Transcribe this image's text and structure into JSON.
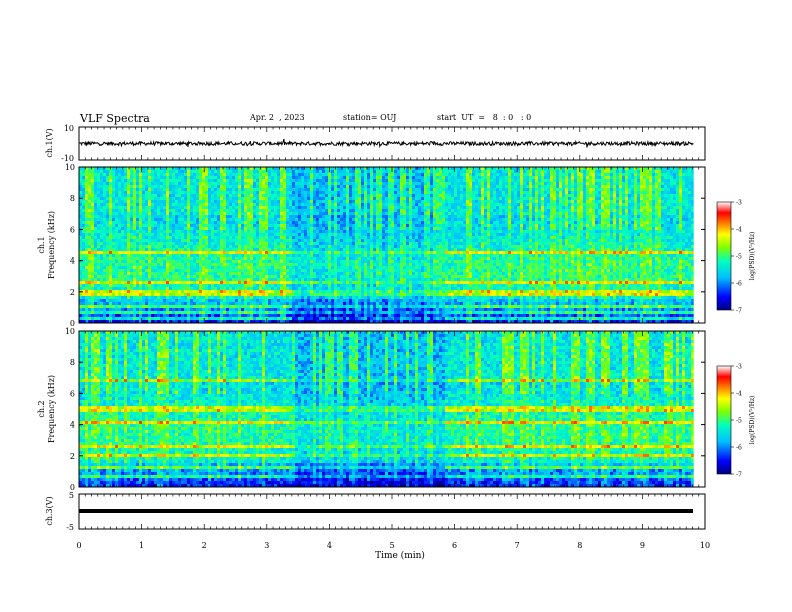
{
  "header": {
    "title": "VLF Spectra",
    "date": "Apr. 2  , 2023",
    "station": "station= OUJ",
    "start": "start  UT  =   8  : 0   : 0"
  },
  "chart_data": [
    {
      "type": "line",
      "name": "ch1-waveform",
      "ylabel": "ch.1(V)",
      "ylim": [
        -10,
        10
      ],
      "ytick_labels": [
        "10",
        "-10"
      ],
      "xlim": [
        0,
        9.82
      ],
      "baseline": 0,
      "description_level_V": 0
    },
    {
      "type": "heatmap",
      "name": "ch1-spectrogram",
      "ylabel": "ch.1\nFrequency  (kHz)",
      "ylim": [
        0,
        10
      ],
      "yticks": [
        0,
        2,
        4,
        6,
        8,
        10
      ],
      "ytick_labels": [
        "0",
        "2",
        "4",
        "6",
        "8",
        "10"
      ],
      "xlim": [
        0,
        9.82
      ],
      "colorbar": {
        "label": "log(PSD)(V²/Hz)",
        "range": [
          -7,
          -3
        ],
        "tick_labels": [
          "-3",
          "-4",
          "-5",
          "-6",
          "-7"
        ],
        "colors": [
          "#000080",
          "#0000ff",
          "#00c0ff",
          "#00ffc0",
          "#80ff00",
          "#ffff00",
          "#ff8000",
          "#ff0000",
          "#ffffff"
        ]
      },
      "features": {
        "quiet_interval_min": [
          3.4,
          5.8
        ],
        "persistent_lines_kHz": [
          0.3,
          0.6,
          1.0,
          1.8,
          2.0,
          2.6,
          4.5
        ]
      }
    },
    {
      "type": "heatmap",
      "name": "ch2-spectrogram",
      "ylabel": "ch.2\nFrequency  (kHz)",
      "ylim": [
        0,
        10
      ],
      "yticks": [
        0,
        2,
        4,
        6,
        8,
        10
      ],
      "ytick_labels": [
        "0",
        "2",
        "4",
        "6",
        "8",
        "10"
      ],
      "xlim": [
        0,
        9.82
      ],
      "colorbar": {
        "label": "log(PSD)(V²/Hz)",
        "range": [
          -7,
          -3
        ],
        "tick_labels": [
          "-3",
          "-4",
          "-5",
          "-6",
          "-7"
        ]
      },
      "features": {
        "quiet_interval_min": [
          3.4,
          5.8
        ],
        "persistent_lines_kHz": [
          0.6,
          1.2,
          2.0,
          2.6,
          4.2,
          5.0,
          6.8
        ]
      }
    },
    {
      "type": "line",
      "name": "ch3-waveform",
      "ylabel": "ch.3(V)",
      "ylim": [
        -5,
        5
      ],
      "ytick_labels": [
        "5",
        "0",
        "-5"
      ],
      "xlim": [
        0,
        9.82
      ],
      "level_V": -0.2
    }
  ],
  "xaxis": {
    "label": "Time  (min)",
    "range": [
      0,
      10
    ],
    "ticks": [
      0,
      1,
      2,
      3,
      4,
      5,
      6,
      7,
      8,
      9,
      10
    ],
    "tick_labels": [
      "0",
      "1",
      "2",
      "3",
      "4",
      "5",
      "6",
      "7",
      "8",
      "9",
      "10"
    ]
  }
}
